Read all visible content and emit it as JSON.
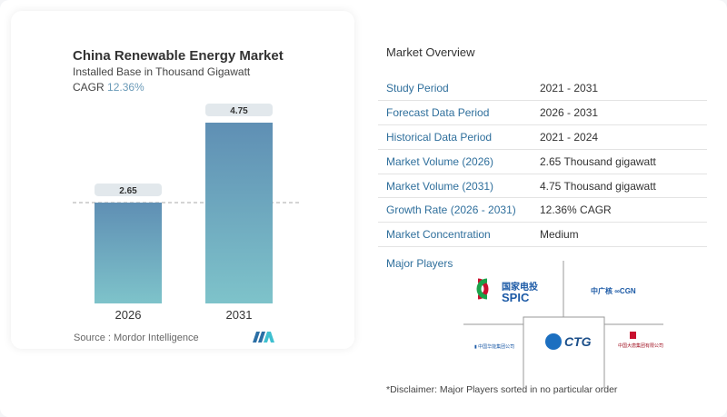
{
  "chart_data": {
    "type": "bar",
    "title": "China Renewable Energy Market",
    "subtitle": "Installed Base in Thousand Gigawatt",
    "cagr_label": "CAGR",
    "cagr_value": "12.36%",
    "categories": [
      "2026",
      "2031"
    ],
    "values": [
      2.65,
      4.75
    ],
    "data_labels": [
      "2.65",
      "4.75"
    ],
    "reference_line": "dashed at 2026 value",
    "bar_gradient": [
      "#5f8fb4",
      "#7ec3ca"
    ],
    "grid": false
  },
  "source": "Source :  Mordor Intelligence",
  "overview": {
    "title": "Market Overview",
    "rows": [
      {
        "k": "Study Period",
        "v": "2021 - 2031"
      },
      {
        "k": "Forecast Data Period",
        "v": "2026 - 2031"
      },
      {
        "k": "Historical Data Period",
        "v": "2021 - 2024"
      },
      {
        "k": "Market Volume (2026)",
        "v": "2.65 Thousand gigawatt"
      },
      {
        "k": "Market Volume (2031)",
        "v": "4.75 Thousand gigawatt"
      },
      {
        "k": "Growth Rate (2026 - 2031)",
        "v": "12.36% CAGR"
      },
      {
        "k": "Market Concentration",
        "v": "Medium"
      }
    ]
  },
  "major_players": {
    "title": "Major Players",
    "logos": [
      "国家电投 SPIC",
      "中广核 CGN",
      "CTG",
      "China Huaneng Group",
      "China Datang Corporation"
    ]
  },
  "disclaimer": "*Disclaimer: Major Players sorted in no particular order"
}
